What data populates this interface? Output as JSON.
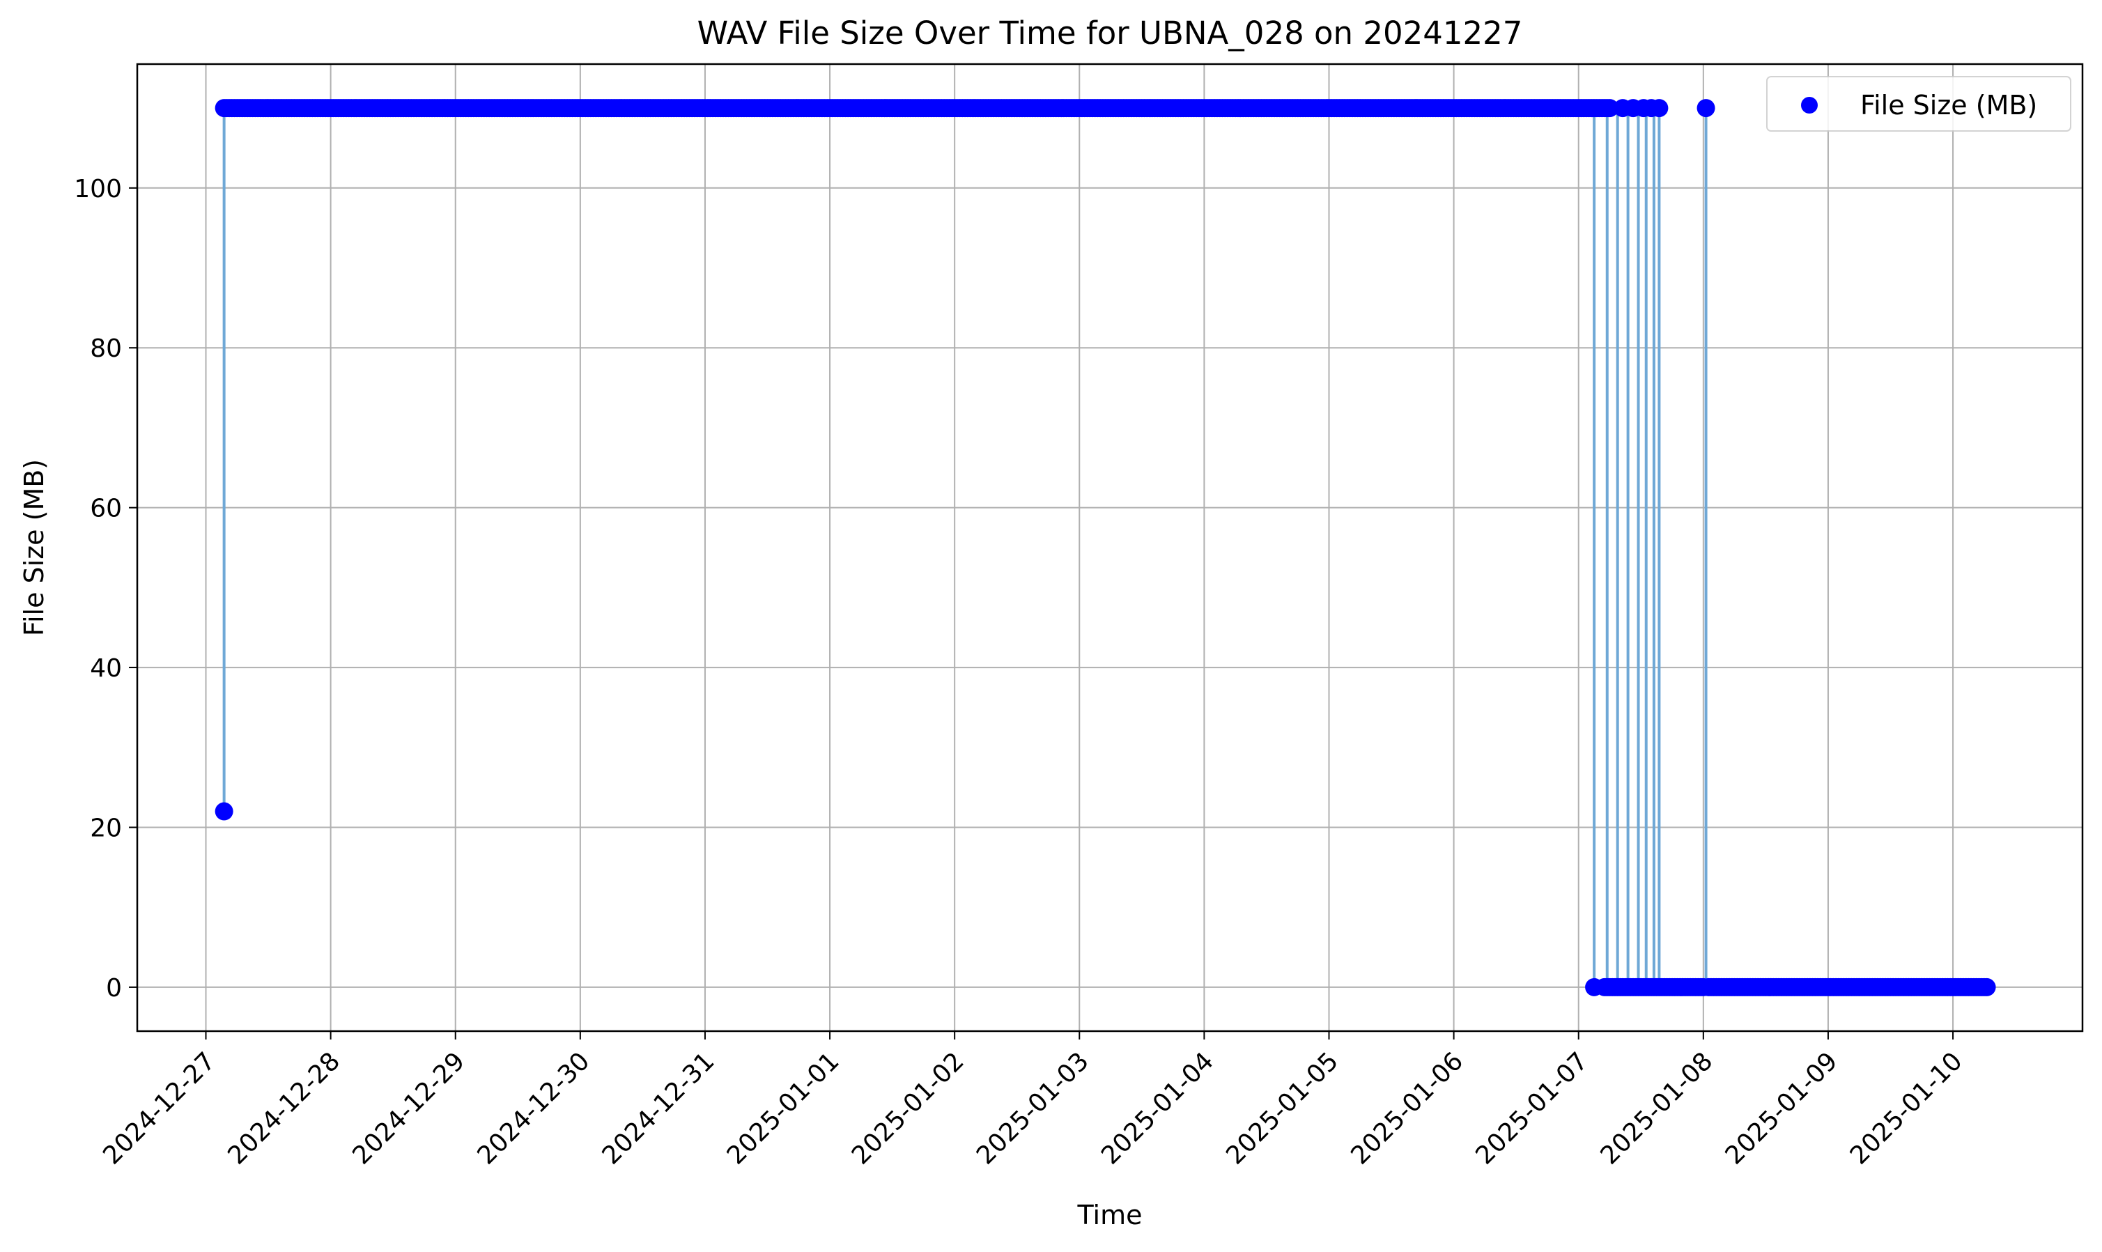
{
  "chart_data": {
    "type": "scatter",
    "title": "WAV File Size Over Time for UBNA_028 on 20241227",
    "xlabel": "Time",
    "ylabel": "File Size (MB)",
    "x_ticks": [
      "2024-12-27",
      "2024-12-28",
      "2024-12-29",
      "2024-12-30",
      "2024-12-31",
      "2025-01-01",
      "2025-01-02",
      "2025-01-03",
      "2025-01-04",
      "2025-01-05",
      "2025-01-06",
      "2025-01-07",
      "2025-01-08",
      "2025-01-09",
      "2025-01-10"
    ],
    "y_ticks": [
      "0",
      "20",
      "40",
      "60",
      "80",
      "100"
    ],
    "ylim": [
      -5.5,
      115.5
    ],
    "xlim": [
      "2024-12-26 10:48",
      "2025-01-11 00:55"
    ],
    "grid": true,
    "legend": {
      "position": "top-right",
      "entries": [
        "File Size (MB)"
      ]
    },
    "series": [
      {
        "name": "File Size (MB)",
        "marker_color": "#0000ff",
        "line_color": "#6fa8d6",
        "segments": [
          {
            "kind": "point",
            "x": "2024-12-27 03:30",
            "y": 22
          },
          {
            "kind": "dense",
            "x_start": "2024-12-27 03:30",
            "x_end": "2025-01-07 06:00",
            "y": 110,
            "interval_minutes": 30
          },
          {
            "kind": "points",
            "x": [
              "2025-01-07 08:30",
              "2025-01-07 10:30",
              "2025-01-07 12:30",
              "2025-01-07 14:00",
              "2025-01-07 15:30"
            ],
            "y": 110
          },
          {
            "kind": "point",
            "x": "2025-01-08 00:30",
            "y": 110
          },
          {
            "kind": "point",
            "x": "2025-01-07 03:00",
            "y": 0
          },
          {
            "kind": "dense",
            "x_start": "2025-01-07 05:00",
            "x_end": "2025-01-08 00:00",
            "y": 0,
            "interval_minutes": 30
          },
          {
            "kind": "dense",
            "x_start": "2025-01-08 01:00",
            "x_end": "2025-01-10 06:30",
            "y": 0,
            "interval_minutes": 30
          }
        ],
        "vertical_lines": [
          {
            "x": "2024-12-27 03:30",
            "y_from": 22,
            "y_to": 110
          },
          {
            "x": "2025-01-07 03:00",
            "y_from": 0,
            "y_to": 110
          },
          {
            "x": "2025-01-07 05:30",
            "y_from": 0,
            "y_to": 110
          },
          {
            "x": "2025-01-07 07:30",
            "y_from": 0,
            "y_to": 110
          },
          {
            "x": "2025-01-07 09:30",
            "y_from": 0,
            "y_to": 110
          },
          {
            "x": "2025-01-07 11:30",
            "y_from": 0,
            "y_to": 110
          },
          {
            "x": "2025-01-07 13:00",
            "y_from": 0,
            "y_to": 110
          },
          {
            "x": "2025-01-07 14:30",
            "y_from": 0,
            "y_to": 110
          },
          {
            "x": "2025-01-07 15:30",
            "y_from": 0,
            "y_to": 110
          },
          {
            "x": "2025-01-08 00:30",
            "y_from": 0,
            "y_to": 110
          }
        ]
      }
    ]
  }
}
